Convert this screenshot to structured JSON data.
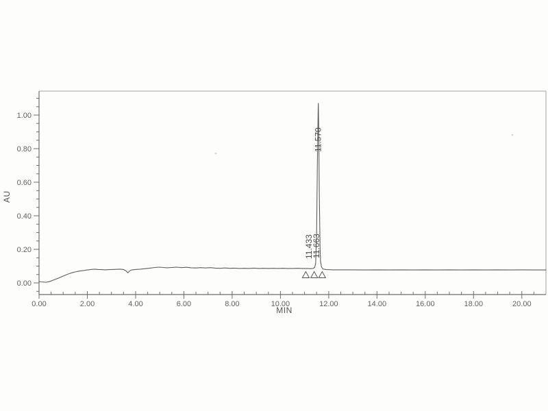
{
  "figure": {
    "background_color": "#fdfdfc",
    "axis_color": "#6e6e6e",
    "frame_color": "#a3a3a3",
    "trace_color": "#4f4f4f",
    "text_color": "#616161"
  },
  "chart_data": {
    "type": "line",
    "title": "",
    "xlabel": "MIN",
    "ylabel": "AU",
    "xlim": [
      0,
      21
    ],
    "ylim": [
      -0.07,
      1.14
    ],
    "grid": false,
    "x_tick_values": [
      0,
      2,
      4,
      6,
      8,
      10,
      12,
      14,
      16,
      18,
      20
    ],
    "x_tick_labels": [
      "0.00",
      "2.00",
      "4.00",
      "6.00",
      "8.00",
      "10.00",
      "12.00",
      "14.00",
      "16.00",
      "18.00",
      "20.00"
    ],
    "x_minor_step": 0.5,
    "y_tick_values": [
      0.0,
      0.2,
      0.4,
      0.6,
      0.8,
      1.0
    ],
    "y_tick_labels": [
      "0.00",
      "0.20",
      "0.40",
      "0.60",
      "0.80",
      "1.00"
    ],
    "y_minor_step": 0.05,
    "series": [
      {
        "name": "detector-signal",
        "points": [
          [
            0.0,
            0.008
          ],
          [
            0.1,
            0.006
          ],
          [
            0.2,
            0.005
          ],
          [
            0.3,
            0.004
          ],
          [
            0.4,
            0.007
          ],
          [
            0.5,
            0.012
          ],
          [
            0.65,
            0.02
          ],
          [
            0.8,
            0.028
          ],
          [
            0.95,
            0.038
          ],
          [
            1.1,
            0.047
          ],
          [
            1.25,
            0.055
          ],
          [
            1.4,
            0.062
          ],
          [
            1.55,
            0.067
          ],
          [
            1.7,
            0.071
          ],
          [
            1.85,
            0.074
          ],
          [
            2.0,
            0.077
          ],
          [
            2.15,
            0.08
          ],
          [
            2.3,
            0.082
          ],
          [
            2.45,
            0.08
          ],
          [
            2.6,
            0.079
          ],
          [
            2.75,
            0.078
          ],
          [
            2.9,
            0.079
          ],
          [
            3.05,
            0.08
          ],
          [
            3.2,
            0.081
          ],
          [
            3.35,
            0.082
          ],
          [
            3.5,
            0.08
          ],
          [
            3.6,
            0.072
          ],
          [
            3.68,
            0.06
          ],
          [
            3.76,
            0.072
          ],
          [
            3.85,
            0.078
          ],
          [
            4.0,
            0.08
          ],
          [
            4.2,
            0.082
          ],
          [
            4.4,
            0.085
          ],
          [
            4.6,
            0.088
          ],
          [
            4.8,
            0.092
          ],
          [
            5.0,
            0.094
          ],
          [
            5.15,
            0.092
          ],
          [
            5.3,
            0.09
          ],
          [
            5.5,
            0.092
          ],
          [
            5.7,
            0.094
          ],
          [
            5.9,
            0.091
          ],
          [
            6.1,
            0.093
          ],
          [
            6.3,
            0.09
          ],
          [
            6.5,
            0.089
          ],
          [
            6.7,
            0.091
          ],
          [
            6.9,
            0.089
          ],
          [
            7.1,
            0.091
          ],
          [
            7.3,
            0.088
          ],
          [
            7.5,
            0.087
          ],
          [
            7.7,
            0.089
          ],
          [
            7.9,
            0.087
          ],
          [
            8.1,
            0.088
          ],
          [
            8.3,
            0.086
          ],
          [
            8.5,
            0.087
          ],
          [
            8.7,
            0.086
          ],
          [
            8.9,
            0.088
          ],
          [
            9.1,
            0.086
          ],
          [
            9.3,
            0.087
          ],
          [
            9.5,
            0.086
          ],
          [
            9.7,
            0.087
          ],
          [
            9.9,
            0.086
          ],
          [
            10.1,
            0.087
          ],
          [
            10.3,
            0.086
          ],
          [
            10.5,
            0.086
          ],
          [
            10.7,
            0.087
          ],
          [
            10.9,
            0.086
          ],
          [
            11.1,
            0.086
          ],
          [
            11.25,
            0.085
          ],
          [
            11.35,
            0.086
          ],
          [
            11.42,
            0.092
          ],
          [
            11.46,
            0.115
          ],
          [
            11.5,
            0.3
          ],
          [
            11.53,
            0.7
          ],
          [
            11.56,
            1.02
          ],
          [
            11.57,
            1.07
          ],
          [
            11.585,
            0.95
          ],
          [
            11.61,
            0.55
          ],
          [
            11.64,
            0.22
          ],
          [
            11.66,
            0.13
          ],
          [
            11.7,
            0.095
          ],
          [
            11.76,
            0.083
          ],
          [
            11.9,
            0.079
          ],
          [
            12.2,
            0.078
          ],
          [
            12.6,
            0.078
          ],
          [
            13.0,
            0.078
          ],
          [
            13.5,
            0.077
          ],
          [
            14.0,
            0.078
          ],
          [
            14.5,
            0.077
          ],
          [
            15.0,
            0.078
          ],
          [
            15.5,
            0.077
          ],
          [
            16.0,
            0.078
          ],
          [
            16.5,
            0.077
          ],
          [
            17.0,
            0.078
          ],
          [
            17.5,
            0.077
          ],
          [
            18.0,
            0.078
          ],
          [
            18.5,
            0.077
          ],
          [
            19.0,
            0.078
          ],
          [
            19.5,
            0.077
          ],
          [
            20.0,
            0.078
          ],
          [
            20.5,
            0.077
          ],
          [
            21.0,
            0.077
          ]
        ]
      }
    ],
    "peaks": [
      {
        "rt": 11.433,
        "label": "11.433"
      },
      {
        "rt": 11.57,
        "label": "11.570"
      },
      {
        "rt": 11.663,
        "label": "11.663"
      }
    ],
    "main_peak_apex_au": 1.07,
    "integration_marks_min": [
      11.05,
      11.4,
      11.73
    ],
    "legend": null
  }
}
